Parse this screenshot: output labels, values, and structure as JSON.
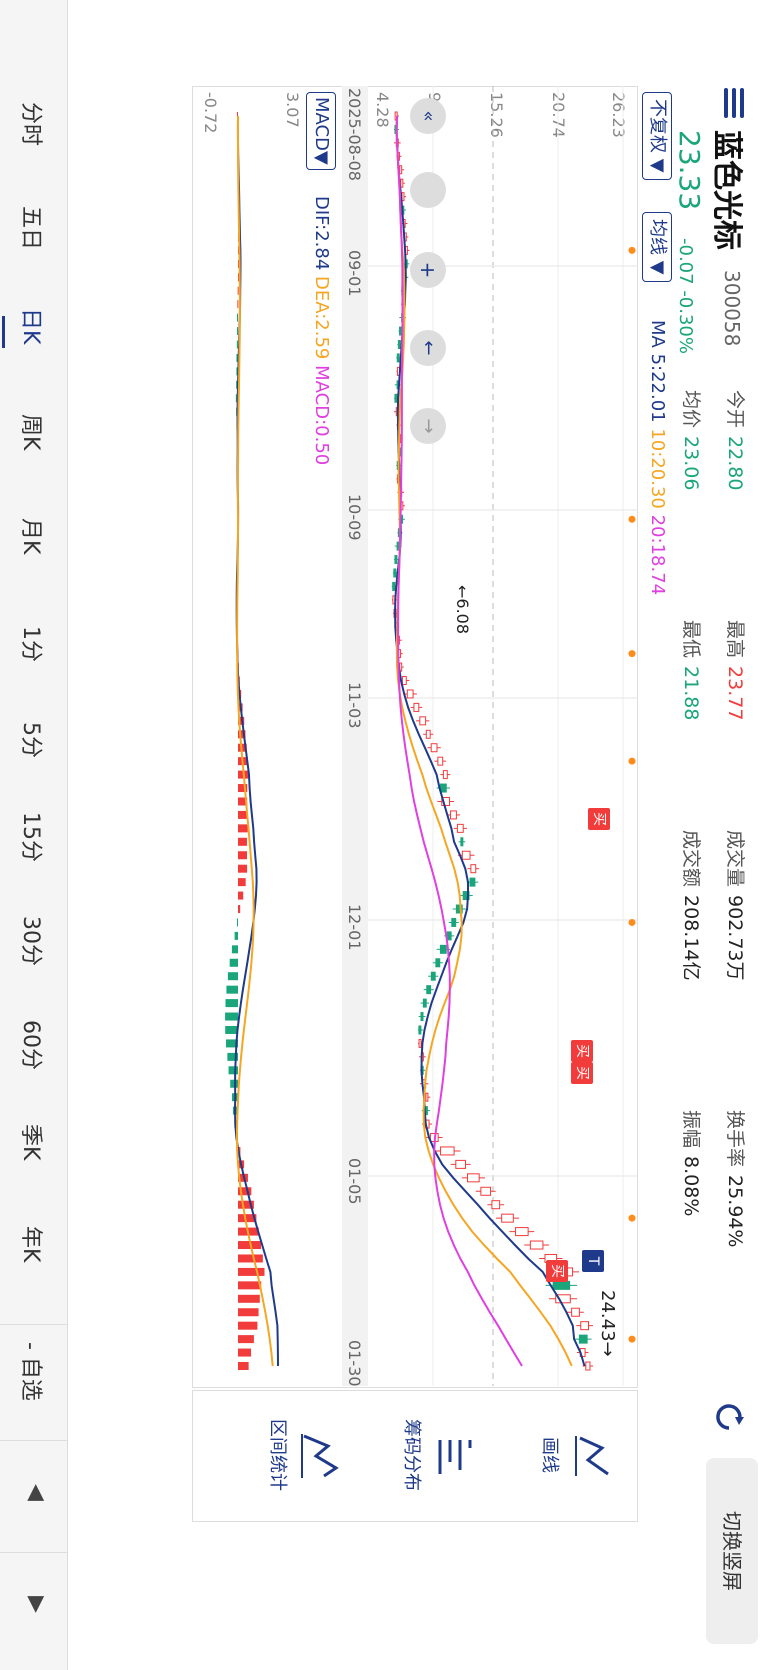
{
  "header": {
    "stock_name": "蓝色光标",
    "stock_code": "300058",
    "price": "23.33",
    "change": "-0.07",
    "change_pct": "-0.30%",
    "open_label": "今开",
    "open_value": "22.80",
    "high_label": "最高",
    "high_value": "23.77",
    "volume_label": "成交量",
    "volume_value": "902.73万",
    "turnover_label": "换手率",
    "turnover_value": "25.94%",
    "avg_label": "均价",
    "avg_value": "23.06",
    "low_label": "最低",
    "low_value": "21.88",
    "amount_label": "成交额",
    "amount_value": "208.14亿",
    "amplitude_label": "振幅",
    "amplitude_value": "8.08%",
    "switch_label": "切换竖屏",
    "refresh_icon": "refresh-icon",
    "menu_icon": "menu-icon"
  },
  "selectors": {
    "adjust_label": "不复权",
    "indicator_label": "均线",
    "ma_prefix": "MA",
    "ma5": "5:22.01",
    "ma10": "10:20.30",
    "ma20": "20:18.74"
  },
  "chart": {
    "y_labels": [
      "26.23",
      "20.74",
      "15.26",
      "9.77",
      "4.28"
    ],
    "x_labels": [
      "2025-08-08",
      "09-01",
      "10-09",
      "11-03",
      "12-01",
      "01-05",
      "01-30"
    ],
    "low_marker": "6.08",
    "high_marker": "24.43",
    "buy_label": "买",
    "t_label": "T"
  },
  "macd": {
    "select_label": "MACD",
    "dif": "DIF:2.84",
    "dea": "DEA:2.59",
    "macd": "MACD:0.50",
    "y_top": "3.07",
    "y_bottom": "-0.72"
  },
  "tools": {
    "draw_label": "画线",
    "chips_label": "筹码分布",
    "range_label": "区间统计"
  },
  "tabs": [
    "分时",
    "五日",
    "日K",
    "周K",
    "月K",
    "1分",
    "5分",
    "15分",
    "30分",
    "60分",
    "季K",
    "年K"
  ],
  "active_tab": "日K",
  "watch_label": "- 自选",
  "colors": {
    "up": "#f23b3b",
    "down": "#1aa57a",
    "accent": "#1f3a8a",
    "ma10": "#f5a623",
    "ma20": "#e040e0"
  },
  "chart_data": {
    "type": "candlestick",
    "x_start": "2025-08-08",
    "x_end": "01-30",
    "ylim": [
      4.28,
      26.23
    ],
    "close": [
      6.4,
      6.3,
      6.5,
      6.6,
      6.8,
      6.9,
      7.0,
      6.9,
      7.1,
      7.2,
      7.3,
      7.2,
      7.0,
      6.9,
      7.0,
      6.8,
      6.7,
      6.6,
      6.5,
      6.6,
      6.4,
      6.3,
      6.5,
      6.6,
      6.7,
      6.6,
      6.5,
      6.6,
      6.8,
      6.9,
      6.7,
      6.6,
      6.4,
      6.3,
      6.2,
      6.1,
      6.2,
      6.3,
      6.4,
      6.6,
      6.7,
      6.8,
      7.2,
      7.8,
      8.3,
      8.9,
      9.3,
      9.9,
      10.4,
      10.8,
      10.2,
      11.0,
      11.6,
      12.2,
      12.0,
      12.8,
      13.3,
      12.8,
      12.2,
      11.6,
      11.2,
      10.8,
      10.2,
      9.8,
      9.4,
      9.0,
      8.7,
      8.5,
      8.4,
      8.5,
      8.7,
      8.6,
      8.9,
      9.1,
      8.8,
      9.2,
      10.0,
      11.4,
      12.4,
      13.6,
      14.6,
      15.4,
      16.6,
      17.9,
      19.2,
      20.4,
      21.8,
      20.1,
      21.6,
      22.4,
      23.2,
      22.4,
      22.9,
      23.33
    ]
  }
}
